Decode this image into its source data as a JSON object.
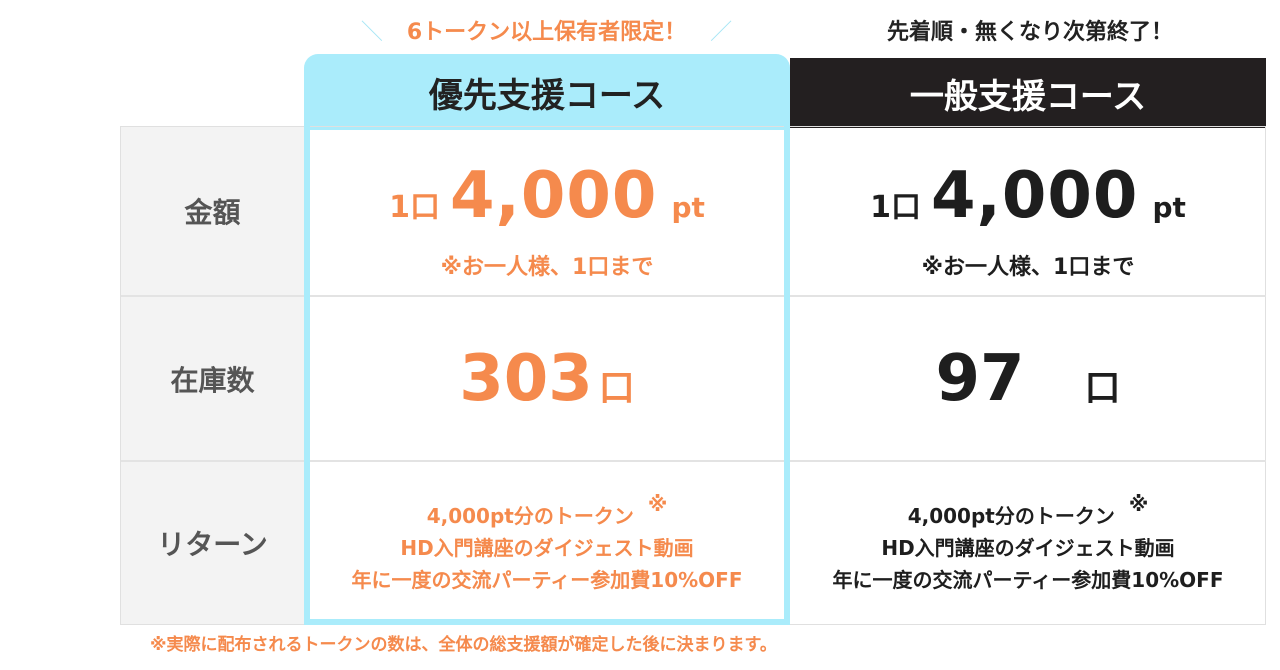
{
  "priority": {
    "tagline": "6トークン以上保有者限定！",
    "title": "優先支援コース",
    "price_prefix": "1口",
    "price_amount": "4,000",
    "price_unit": "pt",
    "price_note": "※お一人様、1口まで",
    "stock_count": "303",
    "stock_unit": "口",
    "returns": [
      "4,000pt分のトークン",
      "HD入門講座のダイジェスト動画",
      "年に一度の交流パーティー参加費10%OFF"
    ],
    "return_mark": "※"
  },
  "general": {
    "tagline": "先着順・無くなり次第終了！",
    "title": "一般支援コース",
    "price_prefix": "1口",
    "price_amount": "4,000",
    "price_unit": "pt",
    "price_note": "※お一人様、1口まで",
    "stock_count": "97",
    "stock_unit": "口",
    "returns": [
      "4,000pt分のトークン",
      "HD入門講座のダイジェスト動画",
      "年に一度の交流パーティー参加費10%OFF"
    ],
    "return_mark": "※"
  },
  "rows": {
    "amount_label": "金額",
    "stock_label": "在庫数",
    "return_label": "リターン"
  },
  "footnote": "※実際に配布されるトークンの数は、全体の総支援額が確定した後に決まります。",
  "colors": {
    "accent": "#f58a4d",
    "priority_header": "#aaecfb",
    "general_header": "#231f20",
    "label_bg": "#f3f3f3"
  }
}
